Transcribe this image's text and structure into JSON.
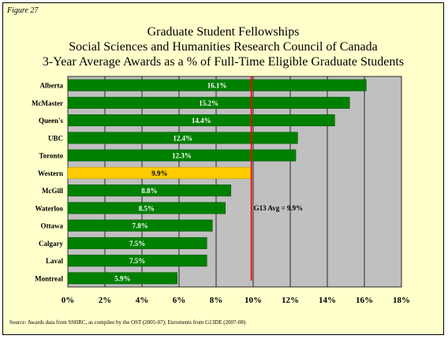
{
  "figure_label": "Figure 27",
  "title_lines": [
    "Graduate Student Fellowships",
    "Social Sciences and Humanities Research Council of Canada",
    "3-Year Average Awards as a % of Full-Time Eligible Graduate Students"
  ],
  "source_note": "Source:  Awards data from SSHRC, as compilee by the OST (2005-07); Enroments from G13DE (2007-08)",
  "colors": {
    "background": "#ffffcc",
    "plot_area": "#c0c0c0",
    "bar": "#008000",
    "highlight_bar": "#ffcc00",
    "avg_line": "#ff0000"
  },
  "chart_data": {
    "type": "bar",
    "orientation": "horizontal",
    "categories": [
      "Alberta",
      "McMaster",
      "Queen's",
      "UBC",
      "Toronto",
      "Western",
      "McGill",
      "Waterloo",
      "Ottawa",
      "Calgary",
      "Laval",
      "Montreal"
    ],
    "values": [
      16.1,
      15.2,
      14.4,
      12.4,
      12.3,
      9.9,
      8.8,
      8.5,
      7.8,
      7.5,
      7.5,
      5.9
    ],
    "value_labels": [
      "16.1%",
      "15.2%",
      "14.4%",
      "12.4%",
      "12.3%",
      "9.9%",
      "8.8%",
      "8.5%",
      "7.8%",
      "7.5%",
      "7.5%",
      "5.9%"
    ],
    "highlight_category": "Western",
    "xlim": [
      0,
      18
    ],
    "xticks": [
      0,
      2,
      4,
      6,
      8,
      10,
      12,
      14,
      16,
      18
    ],
    "xtick_labels": [
      "0%",
      "2%",
      "4%",
      "6%",
      "8%",
      "10%",
      "12%",
      "14%",
      "16%",
      "18%"
    ],
    "vertical_grid": true,
    "reference_line": {
      "value": 9.9,
      "label": "G13 Avg =  9.9%"
    },
    "xlabel": "",
    "ylabel": ""
  }
}
